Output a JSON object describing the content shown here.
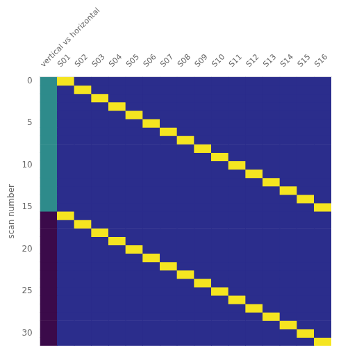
{
  "chart_data": {
    "type": "heatmap",
    "categories": [
      "vertical vs horizontal",
      "S01",
      "S02",
      "S03",
      "S04",
      "S05",
      "S06",
      "S07",
      "S08",
      "S09",
      "S10",
      "S11",
      "S12",
      "S13",
      "S14",
      "S15",
      "S16"
    ],
    "ylabel": "scan number",
    "ylim": [
      31.5,
      -0.5
    ],
    "yticks": [
      0,
      5,
      10,
      15,
      20,
      25,
      30
    ],
    "colors": [
      "#2b2d8c",
      "#f5e520",
      "#2e8b8b",
      "#3b0a4a"
    ],
    "grid": false,
    "cells": [
      [
        2,
        1,
        0,
        0,
        0,
        0,
        0,
        0,
        0,
        0,
        0,
        0,
        0,
        0,
        0,
        0,
        0
      ],
      [
        2,
        0,
        1,
        0,
        0,
        0,
        0,
        0,
        0,
        0,
        0,
        0,
        0,
        0,
        0,
        0,
        0
      ],
      [
        2,
        0,
        0,
        1,
        0,
        0,
        0,
        0,
        0,
        0,
        0,
        0,
        0,
        0,
        0,
        0,
        0
      ],
      [
        2,
        0,
        0,
        0,
        1,
        0,
        0,
        0,
        0,
        0,
        0,
        0,
        0,
        0,
        0,
        0,
        0
      ],
      [
        2,
        0,
        0,
        0,
        0,
        1,
        0,
        0,
        0,
        0,
        0,
        0,
        0,
        0,
        0,
        0,
        0
      ],
      [
        2,
        0,
        0,
        0,
        0,
        0,
        1,
        0,
        0,
        0,
        0,
        0,
        0,
        0,
        0,
        0,
        0
      ],
      [
        2,
        0,
        0,
        0,
        0,
        0,
        0,
        1,
        0,
        0,
        0,
        0,
        0,
        0,
        0,
        0,
        0
      ],
      [
        2,
        0,
        0,
        0,
        0,
        0,
        0,
        0,
        1,
        0,
        0,
        0,
        0,
        0,
        0,
        0,
        0
      ],
      [
        2,
        0,
        0,
        0,
        0,
        0,
        0,
        0,
        0,
        1,
        0,
        0,
        0,
        0,
        0,
        0,
        0
      ],
      [
        2,
        0,
        0,
        0,
        0,
        0,
        0,
        0,
        0,
        0,
        1,
        0,
        0,
        0,
        0,
        0,
        0
      ],
      [
        2,
        0,
        0,
        0,
        0,
        0,
        0,
        0,
        0,
        0,
        0,
        1,
        0,
        0,
        0,
        0,
        0
      ],
      [
        2,
        0,
        0,
        0,
        0,
        0,
        0,
        0,
        0,
        0,
        0,
        0,
        1,
        0,
        0,
        0,
        0
      ],
      [
        2,
        0,
        0,
        0,
        0,
        0,
        0,
        0,
        0,
        0,
        0,
        0,
        0,
        1,
        0,
        0,
        0
      ],
      [
        2,
        0,
        0,
        0,
        0,
        0,
        0,
        0,
        0,
        0,
        0,
        0,
        0,
        0,
        1,
        0,
        0
      ],
      [
        2,
        0,
        0,
        0,
        0,
        0,
        0,
        0,
        0,
        0,
        0,
        0,
        0,
        0,
        0,
        1,
        0
      ],
      [
        2,
        0,
        0,
        0,
        0,
        0,
        0,
        0,
        0,
        0,
        0,
        0,
        0,
        0,
        0,
        0,
        1
      ],
      [
        3,
        1,
        0,
        0,
        0,
        0,
        0,
        0,
        0,
        0,
        0,
        0,
        0,
        0,
        0,
        0,
        0
      ],
      [
        3,
        0,
        1,
        0,
        0,
        0,
        0,
        0,
        0,
        0,
        0,
        0,
        0,
        0,
        0,
        0,
        0
      ],
      [
        3,
        0,
        0,
        1,
        0,
        0,
        0,
        0,
        0,
        0,
        0,
        0,
        0,
        0,
        0,
        0,
        0
      ],
      [
        3,
        0,
        0,
        0,
        1,
        0,
        0,
        0,
        0,
        0,
        0,
        0,
        0,
        0,
        0,
        0,
        0
      ],
      [
        3,
        0,
        0,
        0,
        0,
        1,
        0,
        0,
        0,
        0,
        0,
        0,
        0,
        0,
        0,
        0,
        0
      ],
      [
        3,
        0,
        0,
        0,
        0,
        0,
        1,
        0,
        0,
        0,
        0,
        0,
        0,
        0,
        0,
        0,
        0
      ],
      [
        3,
        0,
        0,
        0,
        0,
        0,
        0,
        1,
        0,
        0,
        0,
        0,
        0,
        0,
        0,
        0,
        0
      ],
      [
        3,
        0,
        0,
        0,
        0,
        0,
        0,
        0,
        1,
        0,
        0,
        0,
        0,
        0,
        0,
        0,
        0
      ],
      [
        3,
        0,
        0,
        0,
        0,
        0,
        0,
        0,
        0,
        1,
        0,
        0,
        0,
        0,
        0,
        0,
        0
      ],
      [
        3,
        0,
        0,
        0,
        0,
        0,
        0,
        0,
        0,
        0,
        1,
        0,
        0,
        0,
        0,
        0,
        0
      ],
      [
        3,
        0,
        0,
        0,
        0,
        0,
        0,
        0,
        0,
        0,
        0,
        1,
        0,
        0,
        0,
        0,
        0
      ],
      [
        3,
        0,
        0,
        0,
        0,
        0,
        0,
        0,
        0,
        0,
        0,
        0,
        1,
        0,
        0,
        0,
        0
      ],
      [
        3,
        0,
        0,
        0,
        0,
        0,
        0,
        0,
        0,
        0,
        0,
        0,
        0,
        1,
        0,
        0,
        0
      ],
      [
        3,
        0,
        0,
        0,
        0,
        0,
        0,
        0,
        0,
        0,
        0,
        0,
        0,
        0,
        1,
        0,
        0
      ],
      [
        3,
        0,
        0,
        0,
        0,
        0,
        0,
        0,
        0,
        0,
        0,
        0,
        0,
        0,
        0,
        1,
        0
      ],
      [
        3,
        0,
        0,
        0,
        0,
        0,
        0,
        0,
        0,
        0,
        0,
        0,
        0,
        0,
        0,
        0,
        1
      ]
    ]
  }
}
